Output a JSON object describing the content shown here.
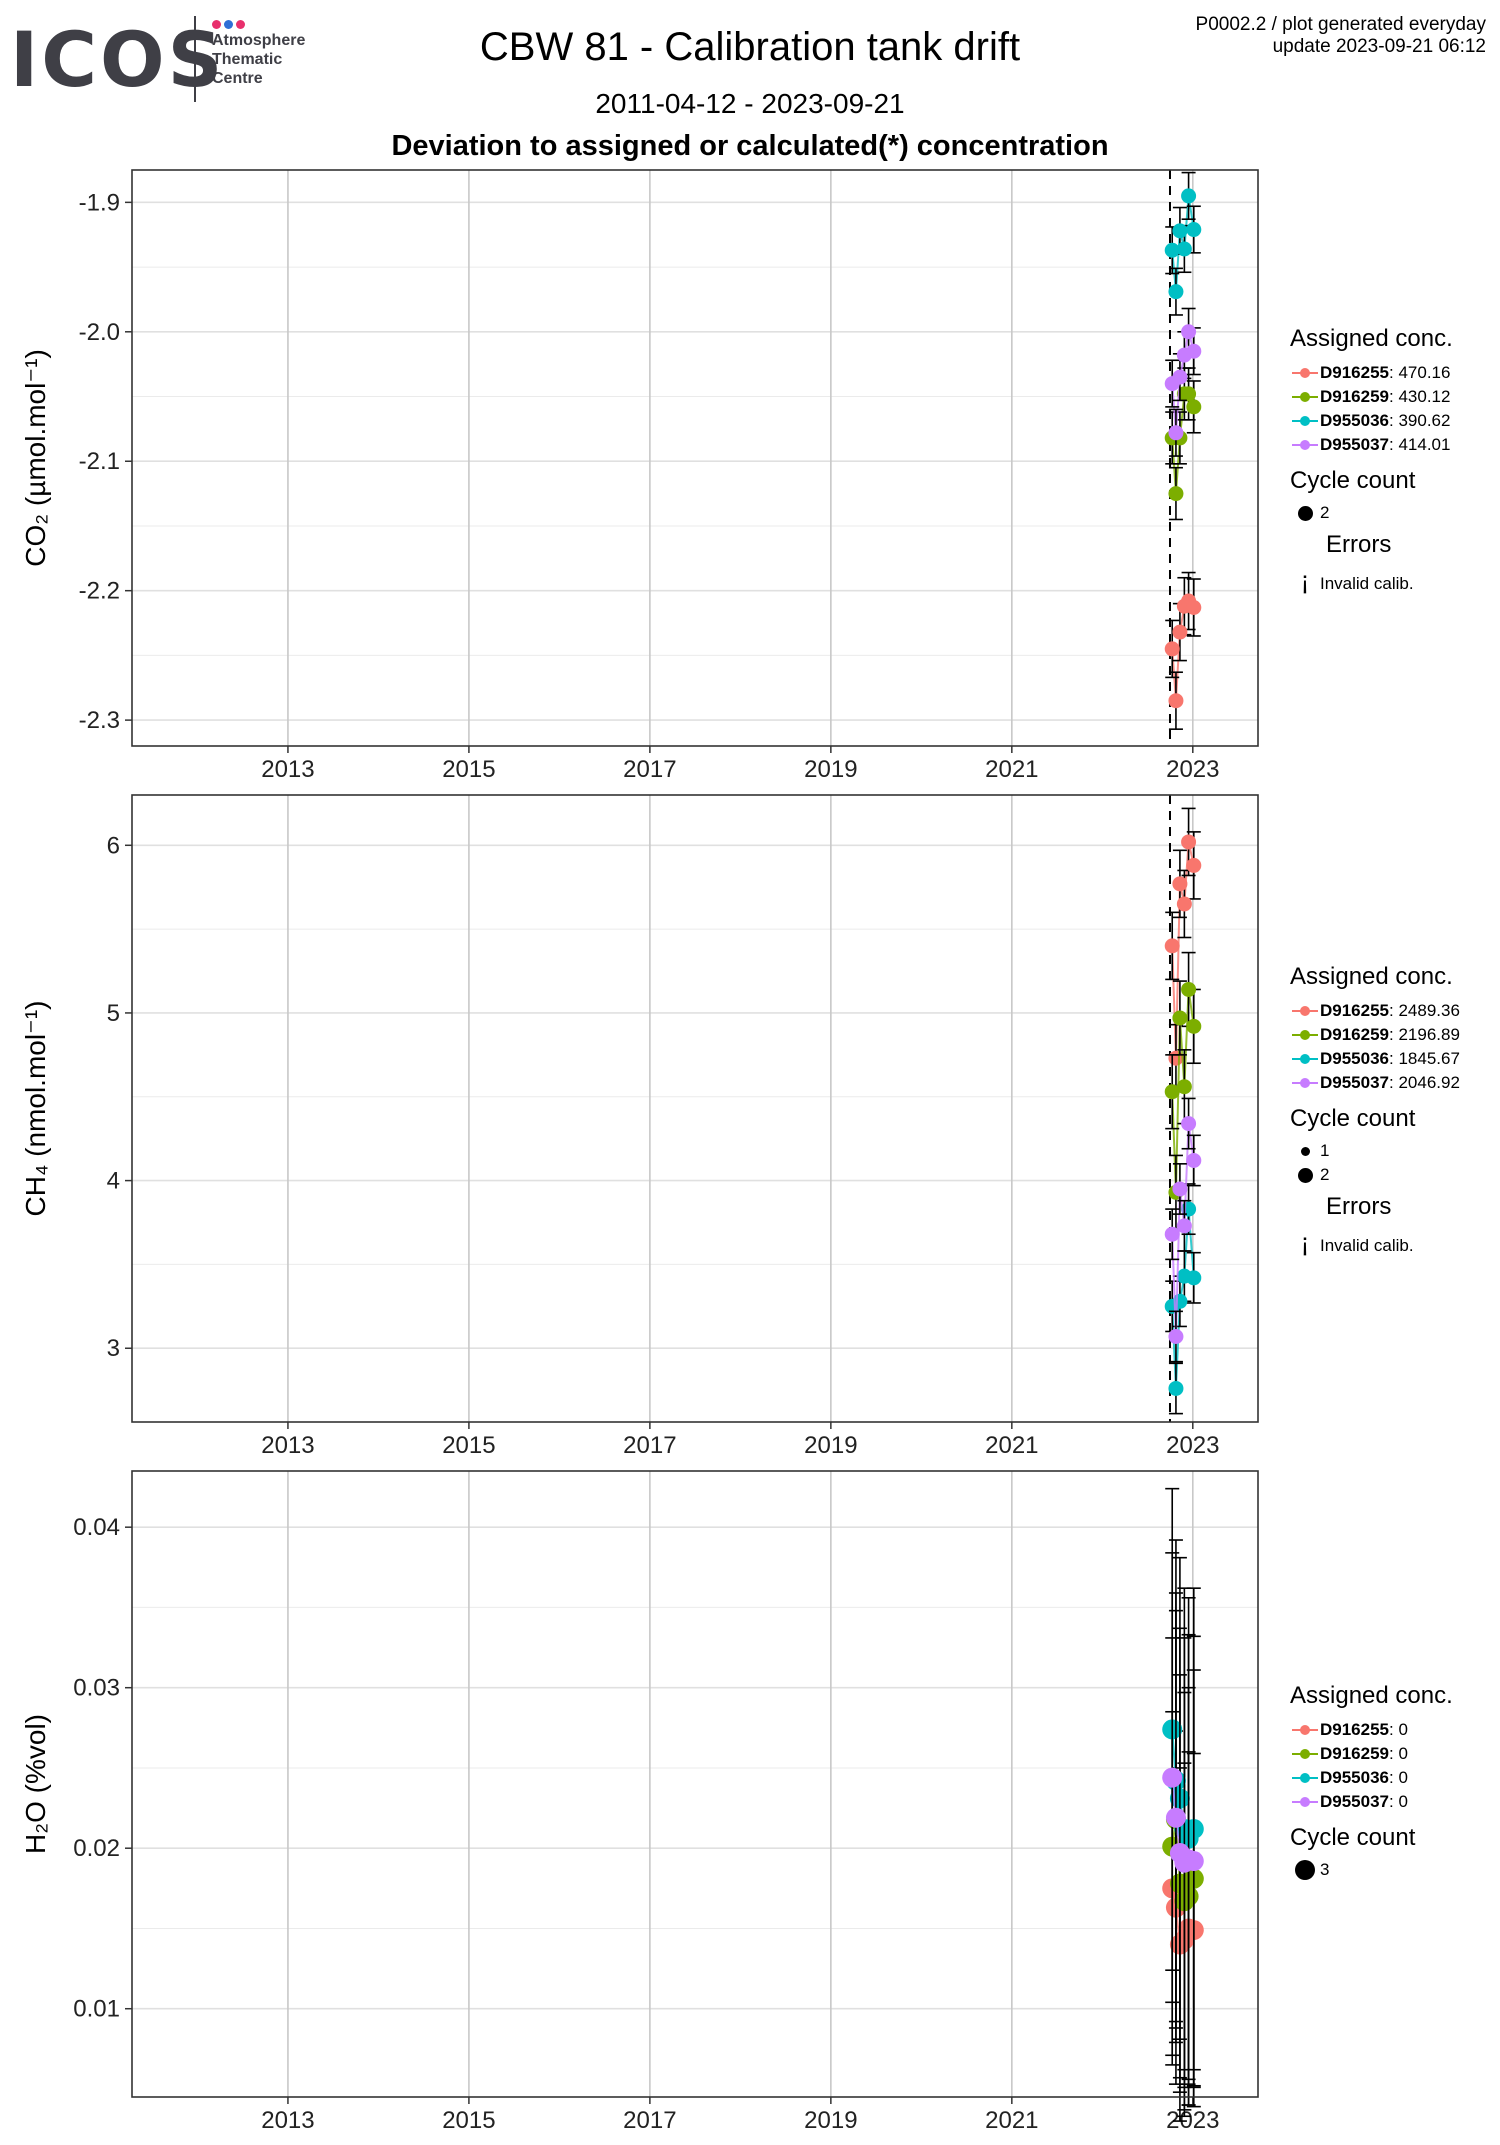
{
  "header": {
    "logo_text": "ICOS",
    "logo_sub": [
      "Atmosphere",
      "Thematic",
      "Centre"
    ],
    "logo_dot_colors": [
      "#e8306d",
      "#2f6fd6",
      "#e8306d"
    ],
    "title": "CBW 81 - Calibration tank drift",
    "date_range": "2011-04-12 - 2023-09-21",
    "subtitle": "Deviation to assigned or calculated(*) concentration",
    "meta_line1": "P0002.2 / plot generated everyday",
    "meta_line2": "update  2023-09-21 06:12"
  },
  "colors": {
    "D916255": "#f8766d",
    "D916259": "#7cae00",
    "D955036": "#00bfc4",
    "D955037": "#c77cff"
  },
  "legend_titles": {
    "assigned": "Assigned conc.",
    "cycle": "Cycle count",
    "errors": "Errors",
    "invalid": "Invalid calib.",
    "invalid_glyph": "¡"
  },
  "chart_data": [
    {
      "type": "scatter",
      "panel": "CO2",
      "ylabel": "CO₂ (µmol.mol⁻¹)",
      "xlim": [
        "2011-04-12",
        "2023-09-21"
      ],
      "ylim": [
        -2.32,
        -1.875
      ],
      "xticks": [
        "2013",
        "2015",
        "2017",
        "2019",
        "2021",
        "2023"
      ],
      "yticks": [
        -1.9,
        -2.0,
        -2.1,
        -2.2,
        -2.3
      ],
      "ytick_labels": [
        "-1.9",
        "-2.0",
        "-2.1",
        "-2.2",
        "-2.3"
      ],
      "vline_date": "2022-10-01",
      "legend": [
        {
          "tank": "D916255",
          "value": "470.16"
        },
        {
          "tank": "D916259",
          "value": "430.12"
        },
        {
          "tank": "D955036",
          "value": "390.62"
        },
        {
          "tank": "D955037",
          "value": "414.01"
        }
      ],
      "cycle_counts": [
        2
      ],
      "show_errors": true,
      "series": [
        {
          "name": "D916255",
          "x": [
            "2022-10-10",
            "2022-10-25",
            "2022-11-10",
            "2022-11-28",
            "2022-12-15",
            "2023-01-05"
          ],
          "y": [
            -2.245,
            -2.285,
            -2.232,
            -2.212,
            -2.208,
            -2.213
          ],
          "err": 0.022
        },
        {
          "name": "D916259",
          "x": [
            "2022-10-10",
            "2022-10-25",
            "2022-11-10",
            "2022-11-28",
            "2022-12-15",
            "2023-01-05"
          ],
          "y": [
            -2.082,
            -2.125,
            -2.082,
            -2.048,
            -2.048,
            -2.058
          ],
          "err": 0.02
        },
        {
          "name": "D955036",
          "x": [
            "2022-10-10",
            "2022-10-25",
            "2022-11-10",
            "2022-11-28",
            "2022-12-15",
            "2023-01-05"
          ],
          "y": [
            -1.937,
            -1.969,
            -1.922,
            -1.936,
            -1.895,
            -1.921
          ],
          "err": 0.018
        },
        {
          "name": "D955037",
          "x": [
            "2022-10-10",
            "2022-10-25",
            "2022-11-10",
            "2022-11-28",
            "2022-12-15",
            "2023-01-05"
          ],
          "y": [
            -2.04,
            -2.078,
            -2.035,
            -2.018,
            -2.0,
            -2.015
          ],
          "err": 0.018
        }
      ]
    },
    {
      "type": "scatter",
      "panel": "CH4",
      "ylabel": "CH₄ (nmol.mol⁻¹)",
      "xlim": [
        "2011-04-12",
        "2023-09-21"
      ],
      "ylim": [
        2.56,
        6.3
      ],
      "xticks": [
        "2013",
        "2015",
        "2017",
        "2019",
        "2021",
        "2023"
      ],
      "yticks": [
        3,
        4,
        5,
        6
      ],
      "ytick_labels": [
        "3",
        "4",
        "5",
        "6"
      ],
      "vline_date": "2022-10-01",
      "legend": [
        {
          "tank": "D916255",
          "value": "2489.36"
        },
        {
          "tank": "D916259",
          "value": "2196.89"
        },
        {
          "tank": "D955036",
          "value": "1845.67"
        },
        {
          "tank": "D955037",
          "value": "2046.92"
        }
      ],
      "cycle_counts": [
        1,
        2
      ],
      "show_errors": true,
      "series": [
        {
          "name": "D916255",
          "x": [
            "2022-10-10",
            "2022-10-25",
            "2022-11-10",
            "2022-11-28",
            "2022-12-15",
            "2023-01-05"
          ],
          "y": [
            5.4,
            4.73,
            5.77,
            5.65,
            6.02,
            5.88
          ],
          "err": 0.2
        },
        {
          "name": "D916259",
          "x": [
            "2022-10-10",
            "2022-10-25",
            "2022-11-10",
            "2022-11-28",
            "2022-12-15",
            "2023-01-05"
          ],
          "y": [
            4.53,
            3.93,
            4.97,
            4.56,
            5.14,
            4.92
          ],
          "err": 0.22
        },
        {
          "name": "D955036",
          "x": [
            "2022-10-10",
            "2022-10-25",
            "2022-11-10",
            "2022-11-28",
            "2022-12-15",
            "2023-01-05"
          ],
          "y": [
            3.25,
            2.76,
            3.28,
            3.43,
            3.83,
            3.42
          ],
          "err": 0.15
        },
        {
          "name": "D955037",
          "x": [
            "2022-10-10",
            "2022-10-25",
            "2022-11-10",
            "2022-11-28",
            "2022-12-15",
            "2023-01-05"
          ],
          "y": [
            3.68,
            3.07,
            3.95,
            3.73,
            4.34,
            4.12
          ],
          "err": 0.15
        }
      ]
    },
    {
      "type": "scatter",
      "panel": "H2O",
      "ylabel": "H₂O (%vol)",
      "xlim": [
        "2011-04-12",
        "2023-09-21"
      ],
      "ylim": [
        0.0045,
        0.0435
      ],
      "xticks": [
        "2013",
        "2015",
        "2017",
        "2019",
        "2021",
        "2023"
      ],
      "yticks": [
        0.01,
        0.02,
        0.03,
        0.04
      ],
      "ytick_labels": [
        "0.01",
        "0.02",
        "0.03",
        "0.04"
      ],
      "vline_date": null,
      "legend": [
        {
          "tank": "D916255",
          "value": "0"
        },
        {
          "tank": "D916259",
          "value": "0"
        },
        {
          "tank": "D955036",
          "value": "0"
        },
        {
          "tank": "D955037",
          "value": "0"
        }
      ],
      "cycle_counts": [
        3
      ],
      "show_errors": false,
      "series": [
        {
          "name": "D916255",
          "x": [
            "2022-10-10",
            "2022-10-25",
            "2022-11-10",
            "2022-11-28",
            "2022-12-15",
            "2023-01-05"
          ],
          "y": [
            0.0175,
            0.0163,
            0.014,
            0.0143,
            0.015,
            0.0149
          ],
          "err": 0.011
        },
        {
          "name": "D916259",
          "x": [
            "2022-10-10",
            "2022-10-25",
            "2022-11-10",
            "2022-11-28",
            "2022-12-15",
            "2023-01-05"
          ],
          "y": [
            0.0201,
            0.0218,
            0.0178,
            0.0167,
            0.017,
            0.0181
          ],
          "err": 0.013
        },
        {
          "name": "D955036",
          "x": [
            "2022-10-10",
            "2022-10-25",
            "2022-11-10",
            "2022-11-28",
            "2022-12-15",
            "2023-01-05"
          ],
          "y": [
            0.0274,
            0.0242,
            0.0231,
            0.0212,
            0.0206,
            0.0212
          ],
          "err": 0.015
        },
        {
          "name": "D955037",
          "x": [
            "2022-10-10",
            "2022-10-25",
            "2022-11-10",
            "2022-11-28",
            "2022-12-15",
            "2023-01-05"
          ],
          "y": [
            0.0244,
            0.0219,
            0.0197,
            0.0191,
            0.0193,
            0.0192
          ],
          "err": 0.014
        }
      ]
    }
  ]
}
